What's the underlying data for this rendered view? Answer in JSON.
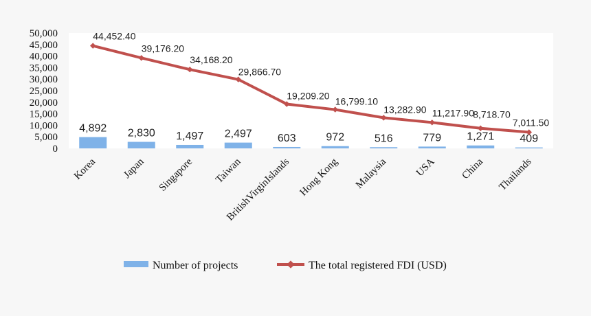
{
  "chart_data": {
    "type": "bar",
    "categories": [
      "Korea",
      "Japan",
      "Singapore",
      "Taiwan",
      "BritishVirginIslands",
      "Hong Kong",
      "Malaysia",
      "USA",
      "China",
      "Thailands"
    ],
    "y_ticks": [
      "0",
      "5,000",
      "10,000",
      "15,000",
      "20,000",
      "25,000",
      "30,000",
      "35,000",
      "40,000",
      "45,000",
      "50,000"
    ],
    "ylim": [
      0,
      50000
    ],
    "grid": false,
    "legend_position": "bottom",
    "series": [
      {
        "name": "Number of projects",
        "type": "bar",
        "color": "#7fb2e8",
        "values": [
          4892,
          2830,
          1497,
          2497,
          603,
          972,
          516,
          779,
          1271,
          409
        ],
        "labels": [
          "4,892",
          "2,830",
          "1,497",
          "2,497",
          "603",
          "972",
          "516",
          "779",
          "1,271",
          "409"
        ]
      },
      {
        "name": "The total registered FDI (USD)",
        "type": "line",
        "color": "#c0504d",
        "values": [
          44452.4,
          39176.2,
          34168.2,
          29866.7,
          19209.2,
          16799.1,
          13282.9,
          11217.9,
          8718.7,
          7011.5
        ],
        "labels": [
          "44,452.40",
          "39,176.20",
          "34,168.20",
          "29,866.70",
          "19,209.20",
          "16,799.10",
          "13,282.90",
          "11,217.90",
          "8,718.70",
          "7,011.50"
        ]
      }
    ]
  }
}
